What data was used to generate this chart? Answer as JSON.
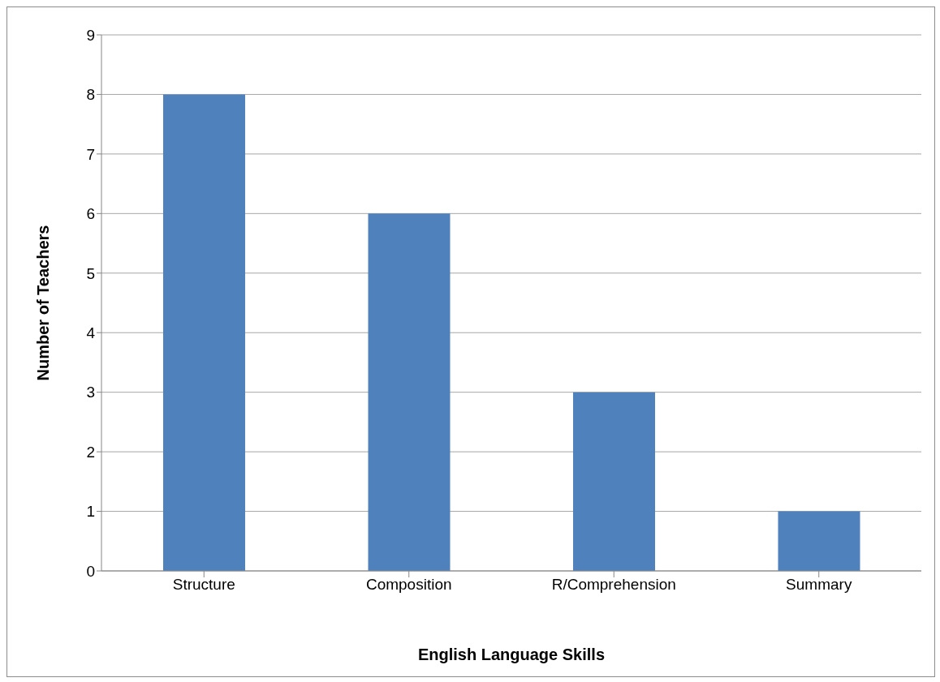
{
  "chart_data": {
    "type": "bar",
    "xlabel": "English Language Skills",
    "ylabel": "Number of Teachers",
    "categories": [
      "Structure",
      "Composition",
      "R/Comprehension",
      "Summary"
    ],
    "values": [
      8,
      6,
      3,
      1
    ],
    "color": "#4f81bd",
    "ylim": [
      0,
      9
    ],
    "yticks": [
      0,
      1,
      2,
      3,
      4,
      5,
      6,
      7,
      8,
      9
    ],
    "grid": "y"
  }
}
